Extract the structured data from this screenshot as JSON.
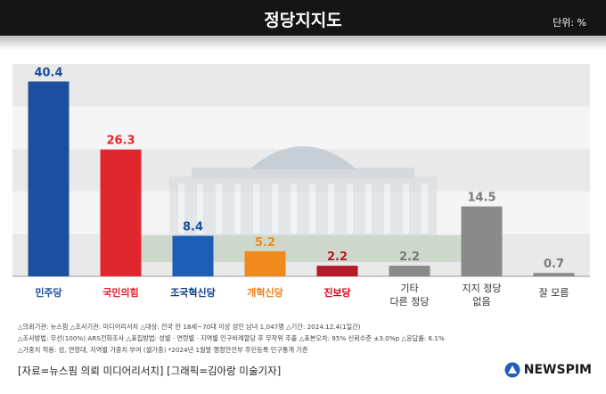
{
  "header": {
    "title": "정당지지도",
    "unit": "단위: %"
  },
  "chart_data": {
    "type": "bar",
    "categories": [
      "더불어민주당",
      "국민의힘",
      "조국혁신당",
      "개혁신당",
      "진보당",
      "기타 다른 정당",
      "지지 정당 없음",
      "잘 모름"
    ],
    "values": [
      40.4,
      26.3,
      8.4,
      5.2,
      2.2,
      2.2,
      14.5,
      0.7
    ],
    "value_labels": [
      "40.4",
      "26.3",
      "8.4",
      "5.2",
      "2.2",
      "2.2",
      "14.5",
      "0.7"
    ],
    "axis_labels": [
      {
        "kind": "logo",
        "text": "민주당",
        "color": "#1d4fa0"
      },
      {
        "kind": "logo",
        "text": "국민의힘",
        "color": "#e61e2b"
      },
      {
        "kind": "logo",
        "text": "조국혁신당",
        "color": "#0b3d8c"
      },
      {
        "kind": "logo",
        "text": "개혁신당",
        "color": "#f07d1a"
      },
      {
        "kind": "logo",
        "text": "진보당",
        "color": "#d6001c"
      },
      {
        "kind": "text",
        "text": "기타\n다른 정당"
      },
      {
        "kind": "text",
        "text": "지지 정당\n없음"
      },
      {
        "kind": "text",
        "text": "잘 모름"
      }
    ],
    "colors": [
      "#1d4fa0",
      "#e0262e",
      "#1c5eb5",
      "#f08a1c",
      "#b51a28",
      "#8a8a8a",
      "#8a8a8a",
      "#8a8a8a"
    ],
    "label_colors": [
      "#1d4fa0",
      "#e0262e",
      "#1d4fa0",
      "#f08a1c",
      "#b51a28",
      "#7a7a7a",
      "#7a7a7a",
      "#7a7a7a"
    ],
    "ylim": [
      0,
      44
    ],
    "grid": true,
    "legend": "none"
  },
  "notes": [
    "△의뢰기관: 뉴스핌  △조사기관: 미디어리서치  △대상: 전국 만 18세~70대 이상 성인 남녀 1,047명  △기간: 2024.12.4(1일간)",
    "△조사방법: 무선(100%) ARS전화조사  △표집방법: 성별 · 연령별 · 지역별 인구비례할당 후 무작위 추출  △표본오차: 95% 신뢰수준 ±3.0%p  △응답률: 6.1%",
    "△가중치 적용: 성, 연령대, 지역별 가중치 부여 (셀가중) *2024년 1월말 행정안전부 주민등록 인구통계 기준"
  ],
  "source": "[자료=뉴스핌 의뢰 미디어리서치] [그래픽=김아랑 미술기자]",
  "brand": {
    "name": "NEWSPIM",
    "logo_color": "#1f5fb5"
  }
}
